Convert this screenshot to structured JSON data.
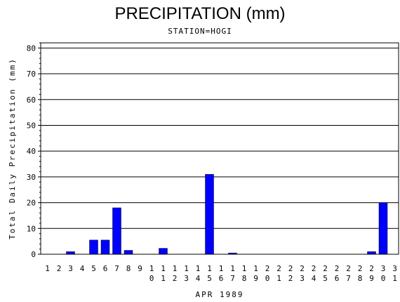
{
  "title": "PRECIPITATION (mm)",
  "subtitle": "STATION=HOGI",
  "chart_data": {
    "type": "bar",
    "title": "PRECIPITATION (mm)",
    "subtitle": "STATION=HOGI",
    "xlabel": "APR 1989",
    "ylabel": "Total Daily Precipitation (mm)",
    "ylim": [
      0,
      82
    ],
    "yticks": [
      0,
      10,
      20,
      30,
      40,
      50,
      60,
      70,
      80
    ],
    "grid": "horizontal",
    "bar_color": "#0000ff",
    "categories": [
      "1",
      "2",
      "3",
      "4",
      "5",
      "6",
      "7",
      "8",
      "9",
      "10",
      "11",
      "12",
      "13",
      "14",
      "15",
      "16",
      "17",
      "18",
      "19",
      "20",
      "21",
      "22",
      "23",
      "24",
      "25",
      "26",
      "27",
      "28",
      "29",
      "30",
      "31"
    ],
    "values": [
      0,
      0,
      1.0,
      0,
      5.5,
      5.5,
      18.0,
      1.5,
      0,
      0,
      2.3,
      0,
      0,
      0,
      31.0,
      0,
      0.5,
      0,
      0,
      0,
      0,
      0,
      0,
      0,
      0,
      0,
      0,
      0,
      1.0,
      20.0,
      0
    ]
  }
}
